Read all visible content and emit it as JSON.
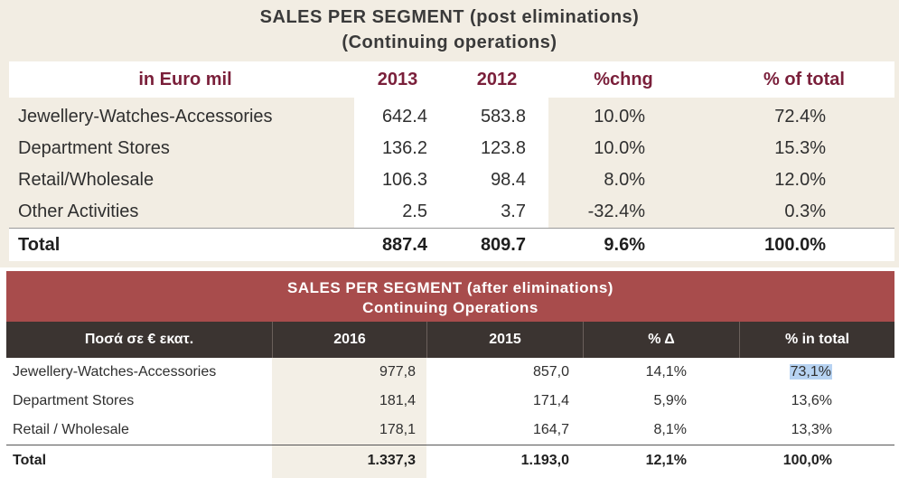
{
  "table1": {
    "title_line1": "SALES PER SEGMENT (post eliminations)",
    "title_line2": "(Continuing operations)",
    "headers": [
      "in Euro mil",
      "2013",
      "2012",
      "%chng",
      "% of total"
    ],
    "rows": [
      [
        "Jewellery-Watches-Accessories",
        "642.4",
        "583.8",
        "10.0%",
        "72.4%"
      ],
      [
        "Department Stores",
        "136.2",
        "123.8",
        "10.0%",
        "15.3%"
      ],
      [
        "Retail/Wholesale",
        "106.3",
        "98.4",
        "8.0%",
        "12.0%"
      ],
      [
        "Other Activities",
        "2.5",
        "3.7",
        "-32.4%",
        "0.3%"
      ]
    ],
    "total": [
      "Total",
      "887.4",
      "809.7",
      "9.6%",
      "100.0%"
    ]
  },
  "table2": {
    "title_line1": "SALES PER SEGMENT (after eliminations)",
    "title_line2": "Continuing Operations",
    "headers": [
      "Ποσά σε € εκατ.",
      "2016",
      "2015",
      "% Δ",
      "% in total"
    ],
    "rows": [
      [
        "Jewellery-Watches-Accessories",
        "977,8",
        "857,0",
        "14,1%",
        "73,1%"
      ],
      [
        "Department Stores",
        "181,4",
        "171,4",
        "5,9%",
        "13,6%"
      ],
      [
        "Retail / Wholesale",
        "178,1",
        "164,7",
        "8,1%",
        "13,3%"
      ]
    ],
    "total": [
      "Total",
      "1.337,3",
      "1.193,0",
      "12,1%",
      "100,0%"
    ]
  },
  "colors": {
    "table1_bg": "#f2ede3",
    "table1_header_text": "#7a1f3a",
    "table2_title_bg": "#a84c4c",
    "table2_header_bg": "#3b3431",
    "selection_highlight": "#b7d3f2"
  }
}
